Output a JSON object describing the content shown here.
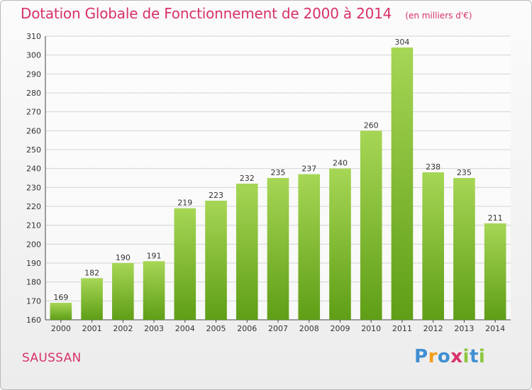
{
  "chart_data": {
    "type": "bar",
    "title": "Dotation Globale de Fonctionnement de 2000 à 2014",
    "subtitle": "(en milliers d'€)",
    "categories": [
      "2000",
      "2001",
      "2002",
      "2003",
      "2004",
      "2005",
      "2006",
      "2007",
      "2008",
      "2009",
      "2010",
      "2011",
      "2012",
      "2013",
      "2014"
    ],
    "values": [
      169,
      182,
      190,
      191,
      219,
      223,
      232,
      235,
      237,
      240,
      260,
      304,
      238,
      235,
      211
    ],
    "ylim": [
      160,
      310
    ],
    "yticks": [
      160,
      170,
      180,
      190,
      200,
      210,
      220,
      230,
      240,
      250,
      260,
      270,
      280,
      290,
      300,
      310
    ],
    "xlabel": "",
    "ylabel": "",
    "grid": true,
    "bar_color_top": "#a6d655",
    "bar_color_bottom": "#5f9e16"
  },
  "footer": {
    "commune": "SAUSSAN",
    "logo_letters": [
      "P",
      "r",
      "o",
      "x",
      "i",
      "t",
      "i"
    ],
    "logo_colors": [
      "#3f8fd2",
      "#f39c1c",
      "#3f8fd2",
      "#d8316a",
      "#8cc63f",
      "#3f8fd2",
      "#8cc63f"
    ]
  },
  "colors": {
    "title": "#d8316a",
    "grid": "#d4d4d4",
    "axis": "#444444"
  }
}
